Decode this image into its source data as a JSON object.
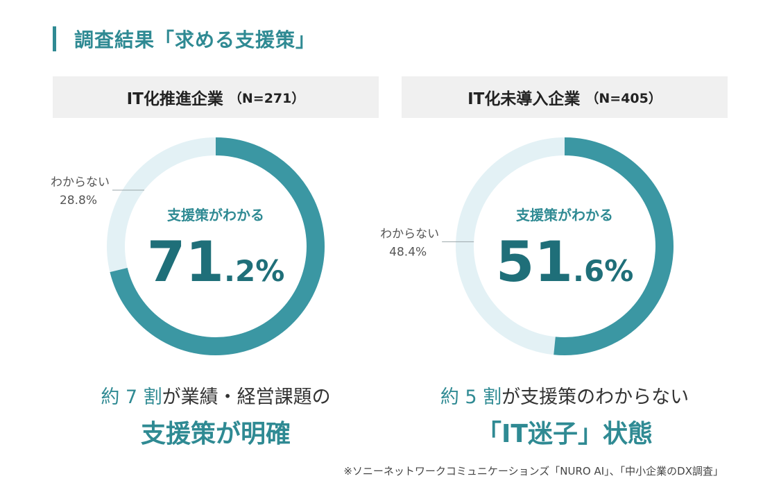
{
  "title": "調査結果「求める支援策」",
  "colors": {
    "accent": "#3b97a3",
    "track": "#e3f1f5",
    "dark_teal": "#1f6f79",
    "header_bg": "#f0f0f0"
  },
  "chart_data": [
    {
      "type": "pie",
      "header": "IT化推進企業",
      "n_label": "（N=271）",
      "slices": [
        {
          "label": "支援策がわかる",
          "value": 71.2
        },
        {
          "label": "わからない",
          "value": 28.8
        }
      ],
      "center_label": "支援策がわかる",
      "center_int": "71",
      "center_dec": ".2%",
      "other_label": "わからない",
      "other_value": "28.8%",
      "caption_em1": "約 7 割",
      "caption_rest": "が業績・経営課題の",
      "caption_big": "支援策が明確"
    },
    {
      "type": "pie",
      "header": "IT化未導入企業",
      "n_label": "（N=405）",
      "slices": [
        {
          "label": "支援策がわかる",
          "value": 51.6
        },
        {
          "label": "わからない",
          "value": 48.4
        }
      ],
      "center_label": "支援策がわかる",
      "center_int": "51",
      "center_dec": ".6%",
      "other_label": "わからない",
      "other_value": "48.4%",
      "caption_em1": "約 5 割",
      "caption_rest": "が支援策のわからない",
      "caption_big": "「IT迷子」状態"
    }
  ],
  "footnote": "※ソニーネットワークコミュニケーションズ「NURO AI」、「中小企業のDX調査」"
}
